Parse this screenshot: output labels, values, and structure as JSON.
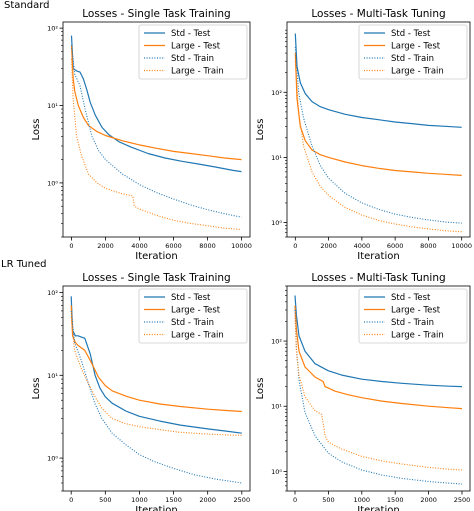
{
  "sections": [
    {
      "label": "Standard"
    },
    {
      "label": "LR Tuned"
    }
  ],
  "colors": {
    "std": "#1f77b4",
    "large": "#ff7f0e"
  },
  "chart_data": [
    {
      "type": "line",
      "title": "Losses - Single Task Training",
      "xlabel": "Iteration",
      "ylabel": "Loss",
      "yscale": "log",
      "xlim": [
        -500,
        10500
      ],
      "ylim": [
        0.2,
        120
      ],
      "xticks": [
        0,
        2000,
        4000,
        6000,
        8000,
        10000
      ],
      "xtick_labels": [
        "0",
        "2000",
        "4000",
        "6000",
        "8000",
        "10000"
      ],
      "yticks": [
        1,
        10,
        100
      ],
      "ytick_labels": [
        "10⁰",
        "10¹",
        "10²"
      ],
      "legend": "top-right",
      "series": [
        {
          "name": "Std - Test",
          "style": "solid",
          "color": "#1f77b4",
          "x": [
            0,
            100,
            300,
            500,
            700,
            900,
            1100,
            1400,
            1800,
            2200,
            2800,
            3500,
            4500,
            5500,
            6500,
            7500,
            8500,
            9500,
            10000
          ],
          "y": [
            80,
            30,
            28,
            27,
            22,
            16,
            11,
            7.5,
            5.2,
            4.2,
            3.4,
            2.9,
            2.4,
            2.1,
            1.9,
            1.75,
            1.6,
            1.45,
            1.4
          ]
        },
        {
          "name": "Large - Test",
          "style": "solid",
          "color": "#ff7f0e",
          "x": [
            0,
            100,
            200,
            400,
            700,
            1000,
            1500,
            2000,
            3000,
            4000,
            5000,
            6000,
            7000,
            8000,
            9000,
            10000
          ],
          "y": [
            60,
            22,
            15,
            10,
            7,
            5.5,
            4.6,
            4.1,
            3.5,
            3.1,
            2.8,
            2.55,
            2.4,
            2.25,
            2.1,
            2.0
          ]
        },
        {
          "name": "Std - Train",
          "style": "dotted",
          "color": "#1f77b4",
          "x": [
            0,
            200,
            500,
            800,
            1200,
            1600,
            2000,
            3000,
            4000,
            5000,
            6000,
            7000,
            8000,
            9000,
            10000
          ],
          "y": [
            60,
            25,
            18,
            9,
            4,
            2.6,
            2.0,
            1.3,
            0.95,
            0.75,
            0.62,
            0.52,
            0.45,
            0.4,
            0.36
          ]
        },
        {
          "name": "Large - Train",
          "style": "dotted",
          "color": "#ff7f0e",
          "x": [
            0,
            100,
            300,
            600,
            1000,
            1500,
            2000,
            3000,
            3600,
            3700,
            4000,
            5000,
            6000,
            7000,
            8000,
            9000,
            10000
          ],
          "y": [
            40,
            12,
            4,
            2.2,
            1.3,
            1.0,
            0.85,
            0.72,
            0.68,
            0.5,
            0.46,
            0.38,
            0.33,
            0.3,
            0.28,
            0.26,
            0.25
          ]
        }
      ]
    },
    {
      "type": "line",
      "title": "Losses - Multi-Task Tuning",
      "xlabel": "Iteration",
      "ylabel": "Loss",
      "yscale": "log",
      "xlim": [
        -500,
        10500
      ],
      "ylim": [
        0.6,
        1200
      ],
      "xticks": [
        0,
        2000,
        4000,
        6000,
        8000,
        10000
      ],
      "xtick_labels": [
        "0",
        "2000",
        "4000",
        "6000",
        "8000",
        "10000"
      ],
      "yticks": [
        1,
        10,
        100
      ],
      "ytick_labels": [
        "10⁰",
        "10¹",
        "10²"
      ],
      "legend": "top-right",
      "series": [
        {
          "name": "Std - Test",
          "style": "solid",
          "color": "#1f77b4",
          "x": [
            0,
            100,
            300,
            600,
            1000,
            1500,
            2000,
            3000,
            4000,
            5000,
            6000,
            7000,
            8000,
            9000,
            10000
          ],
          "y": [
            800,
            250,
            140,
            95,
            72,
            60,
            54,
            46,
            41,
            38,
            35,
            33,
            31,
            30,
            29
          ]
        },
        {
          "name": "Large - Test",
          "style": "solid",
          "color": "#ff7f0e",
          "x": [
            0,
            100,
            300,
            600,
            1000,
            1500,
            2000,
            3000,
            4000,
            5000,
            6000,
            7000,
            8000,
            9000,
            10000
          ],
          "y": [
            400,
            80,
            30,
            18,
            13,
            11,
            10,
            8.5,
            7.5,
            6.8,
            6.3,
            6.0,
            5.7,
            5.5,
            5.3
          ]
        },
        {
          "name": "Std - Train",
          "style": "dotted",
          "color": "#1f77b4",
          "x": [
            0,
            200,
            500,
            1000,
            1500,
            2000,
            3000,
            4000,
            5000,
            6000,
            7000,
            8000,
            9000,
            10000
          ],
          "y": [
            500,
            100,
            40,
            15,
            7.5,
            4.8,
            2.8,
            2.0,
            1.6,
            1.35,
            1.2,
            1.1,
            1.02,
            0.98
          ]
        },
        {
          "name": "Large - Train",
          "style": "dotted",
          "color": "#ff7f0e",
          "x": [
            0,
            200,
            500,
            1000,
            1500,
            2000,
            3000,
            4000,
            5000,
            6000,
            7000,
            8000,
            9000,
            10000
          ],
          "y": [
            300,
            50,
            15,
            6,
            3.6,
            2.6,
            1.7,
            1.3,
            1.08,
            0.95,
            0.86,
            0.8,
            0.75,
            0.72
          ]
        }
      ]
    },
    {
      "type": "line",
      "title": "Losses - Single Task Training",
      "xlabel": "Iteration",
      "ylabel": "Loss",
      "yscale": "log",
      "xlim": [
        -120,
        2620
      ],
      "ylim": [
        0.4,
        120
      ],
      "xticks": [
        0,
        500,
        1000,
        1500,
        2000,
        2500
      ],
      "xtick_labels": [
        "0",
        "500",
        "1000",
        "1500",
        "2000",
        "2500"
      ],
      "yticks": [
        1,
        10,
        100
      ],
      "ytick_labels": [
        "10⁰",
        "10¹",
        "10²"
      ],
      "legend": "top-right",
      "series": [
        {
          "name": "Std - Test",
          "style": "solid",
          "color": "#1f77b4",
          "x": [
            0,
            20,
            60,
            100,
            200,
            280,
            350,
            420,
            500,
            600,
            800,
            1000,
            1300,
            1600,
            2000,
            2300,
            2500
          ],
          "y": [
            90,
            35,
            30,
            30,
            28,
            18,
            10,
            7,
            5.5,
            4.6,
            3.7,
            3.2,
            2.8,
            2.5,
            2.25,
            2.1,
            2.0
          ]
        },
        {
          "name": "Large - Test",
          "style": "solid",
          "color": "#ff7f0e",
          "x": [
            0,
            20,
            60,
            100,
            200,
            300,
            400,
            500,
            600,
            800,
            1000,
            1300,
            1600,
            2000,
            2300,
            2500
          ],
          "y": [
            70,
            30,
            25,
            23,
            20,
            14,
            9.5,
            7.5,
            6.5,
            5.6,
            5.0,
            4.5,
            4.2,
            3.9,
            3.75,
            3.65
          ]
        },
        {
          "name": "Std - Train",
          "style": "dotted",
          "color": "#1f77b4",
          "x": [
            0,
            50,
            150,
            250,
            350,
            450,
            600,
            800,
            1000,
            1200,
            1500,
            1800,
            2100,
            2500
          ],
          "y": [
            60,
            25,
            15,
            8,
            4.5,
            3.0,
            2.0,
            1.45,
            1.1,
            0.92,
            0.75,
            0.63,
            0.56,
            0.5
          ]
        },
        {
          "name": "Large - Train",
          "style": "dotted",
          "color": "#ff7f0e",
          "x": [
            0,
            50,
            150,
            250,
            350,
            450,
            600,
            800,
            1000,
            1300,
            1600,
            2000,
            2300,
            2500
          ],
          "y": [
            50,
            20,
            12,
            8,
            5.5,
            4.0,
            3.0,
            2.6,
            2.4,
            2.2,
            2.05,
            1.95,
            1.9,
            1.88
          ]
        }
      ]
    },
    {
      "type": "line",
      "title": "Losses - Multi-Task Tuning",
      "xlabel": "Iteration",
      "ylabel": "Loss",
      "yscale": "log",
      "xlim": [
        -120,
        2620
      ],
      "ylim": [
        0.5,
        700
      ],
      "xticks": [
        0,
        500,
        1000,
        1500,
        2000,
        2500
      ],
      "xtick_labels": [
        "0",
        "500",
        "1000",
        "1500",
        "2000",
        "2500"
      ],
      "yticks": [
        1,
        10,
        100
      ],
      "ytick_labels": [
        "10⁰",
        "10¹",
        "10²"
      ],
      "legend": "top-right",
      "series": [
        {
          "name": "Std - Test",
          "style": "solid",
          "color": "#1f77b4",
          "x": [
            0,
            20,
            60,
            150,
            300,
            500,
            700,
            1000,
            1300,
            1600,
            2000,
            2300,
            2500
          ],
          "y": [
            500,
            250,
            120,
            70,
            45,
            35,
            30,
            26,
            24,
            22.5,
            21,
            20.3,
            20
          ]
        },
        {
          "name": "Large - Test",
          "style": "solid",
          "color": "#ff7f0e",
          "x": [
            0,
            20,
            60,
            150,
            300,
            420,
            450,
            600,
            800,
            1000,
            1300,
            1600,
            2000,
            2300,
            2500
          ],
          "y": [
            350,
            150,
            70,
            40,
            28,
            24,
            20,
            17,
            15,
            13.5,
            12,
            11,
            10,
            9.5,
            9.2
          ]
        },
        {
          "name": "Std - Train",
          "style": "dotted",
          "color": "#1f77b4",
          "x": [
            0,
            20,
            60,
            150,
            300,
            500,
            700,
            1000,
            1300,
            1600,
            2000,
            2300,
            2500
          ],
          "y": [
            300,
            80,
            25,
            8,
            3.5,
            1.9,
            1.4,
            1.05,
            0.88,
            0.78,
            0.7,
            0.66,
            0.64
          ]
        },
        {
          "name": "Large - Train",
          "style": "dotted",
          "color": "#ff7f0e",
          "x": [
            0,
            20,
            60,
            150,
            300,
            400,
            450,
            500,
            700,
            1000,
            1300,
            1600,
            2000,
            2300,
            2500
          ],
          "y": [
            250,
            70,
            30,
            14,
            8.5,
            7.5,
            3.5,
            2.8,
            2.2,
            1.7,
            1.45,
            1.3,
            1.15,
            1.08,
            1.05
          ]
        }
      ]
    }
  ]
}
